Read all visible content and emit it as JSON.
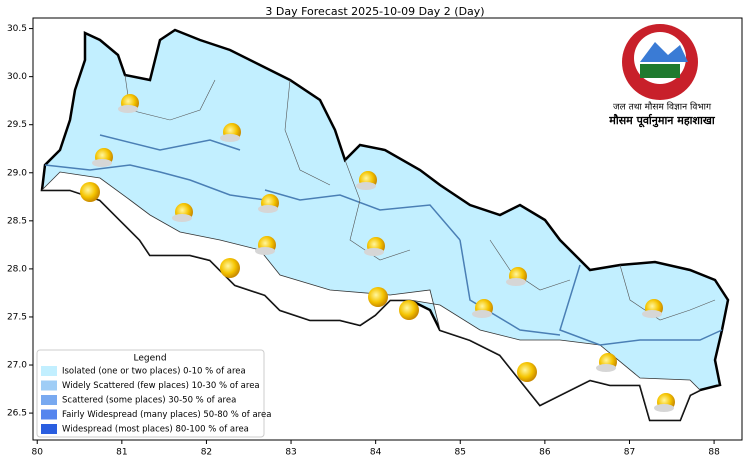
{
  "chart_data": {
    "type": "map",
    "title": "3 Day Forecast 2025-10-09 Day 2 (Day)",
    "xlim": [
      79.95,
      88.33
    ],
    "ylim": [
      26.22,
      30.61
    ],
    "xticks": [
      80,
      81,
      82,
      83,
      84,
      85,
      86,
      87,
      88
    ],
    "yticks": [
      26.5,
      {
        "value": 27,
        "label": "27.0"
      },
      27.5,
      {
        "value": 28,
        "label": "28.0"
      },
      28.5,
      {
        "value": 29,
        "label": "29.0"
      },
      29.5,
      {
        "value": 30,
        "label": "30.0"
      },
      30.5
    ],
    "legend": {
      "title": "Legend",
      "items": [
        {
          "label": "Isolated (one or two places)  0-10 % of area",
          "color": "#c2efff"
        },
        {
          "label": "Widely Scattered (few places) 10-30 % of area",
          "color": "#9fcdf6"
        },
        {
          "label": "Scattered (some places) 30-50  % of area",
          "color": "#78a9f0"
        },
        {
          "label": "Fairly Widespread (many places) 50-80 % of area",
          "color": "#5585ee"
        },
        {
          "label": "Widespread (most places) 80-100 % of area",
          "color": "#2a5ee0"
        }
      ]
    }
  },
  "logo": {
    "line1": "जल तथा मौसम विज्ञान विभाग",
    "line2": "मौसम पूर्वानुमान महाशाखा"
  }
}
